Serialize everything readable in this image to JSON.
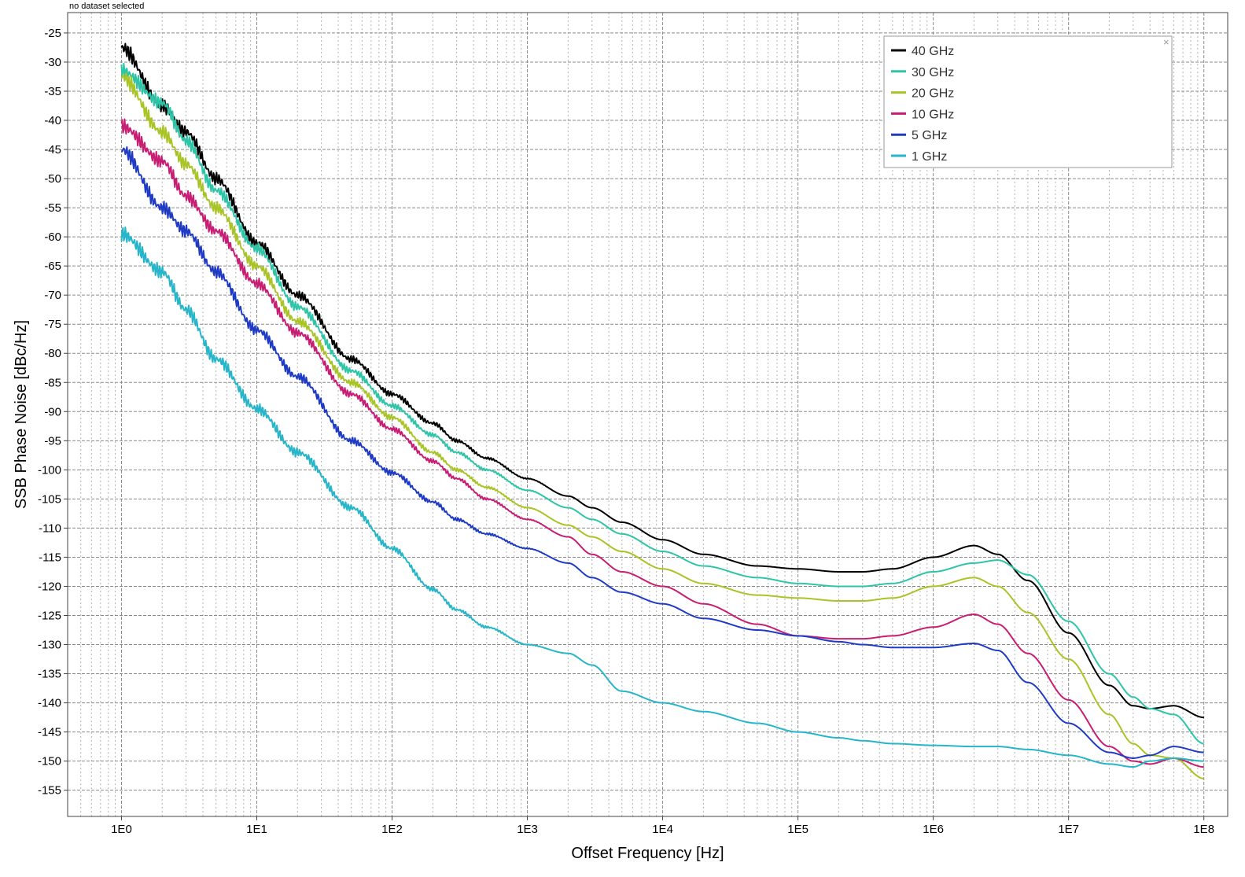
{
  "status_text": "no dataset selected",
  "legend_close": "×",
  "chart_data": {
    "type": "line",
    "title": "",
    "xlabel": "Offset Frequency [Hz]",
    "ylabel": "SSB Phase Noise [dBc/Hz]",
    "xscale": "log",
    "xlim": [
      0.4,
      150000000
    ],
    "ylim": [
      -159.5,
      -21.5
    ],
    "x_ticks": [
      1,
      10,
      100,
      1000,
      10000,
      100000,
      1000000,
      10000000,
      100000000
    ],
    "x_tick_labels": [
      "1E0",
      "1E1",
      "1E2",
      "1E3",
      "1E4",
      "1E5",
      "1E6",
      "1E7",
      "1E8"
    ],
    "y_ticks": [
      -25,
      -30,
      -35,
      -40,
      -45,
      -50,
      -55,
      -60,
      -65,
      -70,
      -75,
      -80,
      -85,
      -90,
      -95,
      -100,
      -105,
      -110,
      -115,
      -120,
      -125,
      -130,
      -135,
      -140,
      -145,
      -150,
      -155
    ],
    "grid": true,
    "legend_position": "top-right",
    "series": [
      {
        "name": "40 GHz",
        "color": "#000000",
        "x": [
          1,
          2,
          3,
          5,
          10,
          20,
          50,
          100,
          200,
          300,
          500,
          1000,
          2000,
          3000,
          5000,
          10000,
          20000,
          50000,
          100000,
          200000,
          300000,
          500000,
          1000000,
          2000000,
          3000000,
          5000000,
          10000000,
          20000000,
          30000000,
          40000000,
          60000000,
          100000000
        ],
        "y": [
          -27.5,
          -37.5,
          -42,
          -50,
          -61,
          -70,
          -81,
          -87,
          -92,
          -95,
          -98,
          -101.5,
          -104.5,
          -106.5,
          -109,
          -112,
          -114.5,
          -116.5,
          -117,
          -117.5,
          -117.5,
          -117,
          -115,
          -113,
          -114.5,
          -119,
          -128,
          -137,
          -140.5,
          -141,
          -140.5,
          -142.5
        ]
      },
      {
        "name": "30 GHz",
        "color": "#2ec4a7",
        "x": [
          1,
          2,
          3,
          5,
          10,
          20,
          50,
          100,
          200,
          300,
          500,
          1000,
          2000,
          3000,
          5000,
          10000,
          20000,
          50000,
          100000,
          200000,
          300000,
          500000,
          1000000,
          2000000,
          3000000,
          5000000,
          10000000,
          20000000,
          30000000,
          40000000,
          60000000,
          100000000
        ],
        "y": [
          -31.5,
          -37,
          -43.5,
          -52,
          -62,
          -72,
          -83,
          -89,
          -94,
          -97,
          -100,
          -103.5,
          -106.5,
          -108.5,
          -111,
          -114,
          -116.5,
          -118.5,
          -119.5,
          -120,
          -120,
          -119.5,
          -117.5,
          -116,
          -115.5,
          -118,
          -126,
          -135,
          -139,
          -141,
          -142,
          -147
        ]
      },
      {
        "name": "20 GHz",
        "color": "#a8c426",
        "x": [
          1,
          2,
          3,
          5,
          10,
          20,
          50,
          100,
          200,
          300,
          500,
          1000,
          2000,
          3000,
          5000,
          10000,
          20000,
          50000,
          100000,
          200000,
          300000,
          500000,
          1000000,
          2000000,
          3000000,
          5000000,
          10000000,
          20000000,
          30000000,
          40000000,
          60000000,
          100000000
        ],
        "y": [
          -32.5,
          -42,
          -47.5,
          -55,
          -65,
          -74.5,
          -85,
          -91,
          -97,
          -100,
          -103,
          -106.5,
          -109.5,
          -111.5,
          -114,
          -117,
          -119.5,
          -121.5,
          -122,
          -122.5,
          -122.5,
          -122,
          -120,
          -118.5,
          -120,
          -124.5,
          -132.5,
          -142,
          -147,
          -149,
          -149.5,
          -153
        ]
      },
      {
        "name": "10 GHz",
        "color": "#c71e73",
        "x": [
          1,
          2,
          3,
          5,
          10,
          20,
          50,
          100,
          200,
          300,
          500,
          1000,
          2000,
          3000,
          5000,
          10000,
          20000,
          50000,
          100000,
          200000,
          300000,
          500000,
          1000000,
          2000000,
          3000000,
          5000000,
          10000000,
          20000000,
          30000000,
          40000000,
          60000000,
          100000000
        ],
        "y": [
          -41,
          -47,
          -53,
          -59,
          -68,
          -76.5,
          -87,
          -93,
          -98.5,
          -101.5,
          -105,
          -108.5,
          -111.5,
          -114.5,
          -117.5,
          -120,
          -123,
          -126.5,
          -128.5,
          -129,
          -129,
          -128.5,
          -127,
          -124.8,
          -126.5,
          -131.5,
          -139.5,
          -147.5,
          -150,
          -150.5,
          -149.5,
          -151
        ]
      },
      {
        "name": "5 GHz",
        "color": "#1f3bc4",
        "x": [
          1,
          2,
          3,
          5,
          10,
          20,
          50,
          100,
          200,
          300,
          500,
          1000,
          2000,
          3000,
          5000,
          10000,
          20000,
          50000,
          100000,
          200000,
          300000,
          500000,
          1000000,
          2000000,
          3000000,
          5000000,
          10000000,
          20000000,
          30000000,
          40000000,
          60000000,
          100000000
        ],
        "y": [
          -45,
          -55,
          -59,
          -66,
          -76,
          -84,
          -95,
          -100.5,
          -105.5,
          -108.5,
          -111,
          -113.5,
          -116,
          -118.5,
          -121,
          -123,
          -125.5,
          -127.5,
          -128.5,
          -129.5,
          -130,
          -130.5,
          -130.5,
          -129.8,
          -131,
          -136.5,
          -143.5,
          -148.5,
          -149.5,
          -149,
          -147.5,
          -148.5
        ]
      },
      {
        "name": "1 GHz",
        "color": "#26b5c9",
        "x": [
          1,
          2,
          3,
          5,
          10,
          20,
          50,
          100,
          200,
          300,
          500,
          1000,
          2000,
          3000,
          5000,
          10000,
          20000,
          50000,
          100000,
          200000,
          300000,
          500000,
          1000000,
          2000000,
          3000000,
          5000000,
          10000000,
          20000000,
          30000000,
          40000000,
          60000000,
          100000000
        ],
        "y": [
          -59.5,
          -66,
          -72.5,
          -81,
          -89.5,
          -97,
          -106.5,
          -113.5,
          -120.5,
          -124,
          -127,
          -130,
          -131.5,
          -133.5,
          -138,
          -140,
          -141.5,
          -143.5,
          -145,
          -146,
          -146.5,
          -147,
          -147.3,
          -147.5,
          -147.5,
          -148,
          -149,
          -150.5,
          -151,
          -150,
          -149.5,
          -150
        ]
      }
    ]
  }
}
